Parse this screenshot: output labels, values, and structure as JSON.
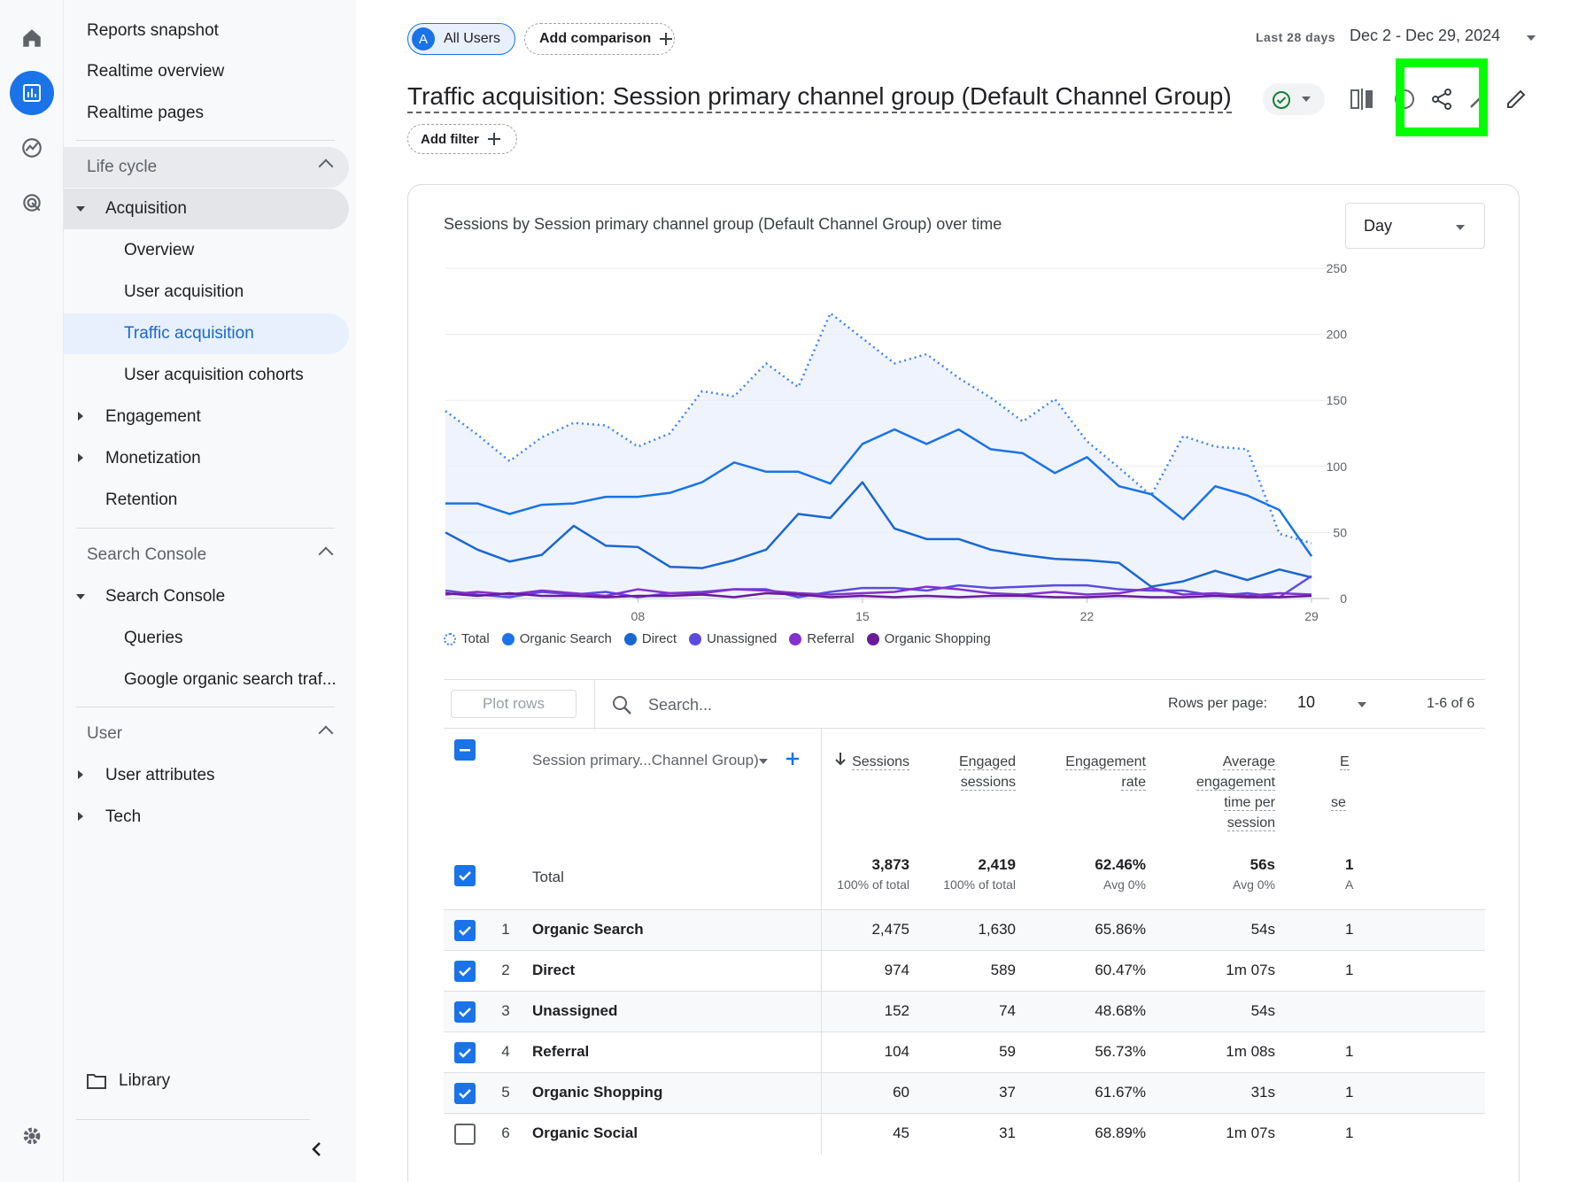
{
  "rail": {
    "icons": [
      "home-icon",
      "reports-icon",
      "explore-icon",
      "advertising-icon",
      "settings-icon"
    ]
  },
  "nav": {
    "reports_snapshot": "Reports snapshot",
    "realtime_overview": "Realtime overview",
    "realtime_pages": "Realtime pages",
    "life_cycle": "Life cycle",
    "acquisition": "Acquisition",
    "overview": "Overview",
    "user_acquisition": "User acquisition",
    "traffic_acquisition": "Traffic acquisition",
    "user_acquisition_cohorts": "User acquisition cohorts",
    "engagement": "Engagement",
    "monetization": "Monetization",
    "retention": "Retention",
    "search_console_section": "Search Console",
    "search_console": "Search Console",
    "queries": "Queries",
    "google_organic": "Google organic search traf...",
    "user_section": "User",
    "user_attributes": "User attributes",
    "tech": "Tech",
    "library": "Library"
  },
  "header": {
    "all_users_avatar": "A",
    "all_users": "All Users",
    "add_comparison": "Add comparison",
    "date_label": "Last 28 days",
    "date_range": "Dec 2 - Dec 29, 2024",
    "title": "Traffic acquisition: Session primary channel group (Default Channel Group)",
    "add_filter": "Add filter"
  },
  "card": {
    "chart_title": "Sessions by Session primary channel group (Default Channel Group) over time",
    "granularity": "Day"
  },
  "chart_data": {
    "type": "line",
    "x": [
      "Dec 2",
      "Dec 3",
      "Dec 4",
      "Dec 5",
      "Dec 6",
      "Dec 7",
      "Dec 8",
      "Dec 9",
      "Dec 10",
      "Dec 11",
      "Dec 12",
      "Dec 13",
      "Dec 14",
      "Dec 15",
      "Dec 16",
      "Dec 17",
      "Dec 18",
      "Dec 19",
      "Dec 20",
      "Dec 21",
      "Dec 22",
      "Dec 23",
      "Dec 24",
      "Dec 25",
      "Dec 26",
      "Dec 27",
      "Dec 28",
      "Dec 29"
    ],
    "x_ticks": [
      {
        "label": "08",
        "sub": "Dec",
        "index": 6
      },
      {
        "label": "15",
        "index": 13
      },
      {
        "label": "22",
        "index": 20
      },
      {
        "label": "29",
        "index": 27
      }
    ],
    "ylim": [
      0,
      250
    ],
    "y_ticks": [
      0,
      50,
      100,
      150,
      200,
      250
    ],
    "y_axis_side": "right",
    "series": [
      {
        "name": "Total",
        "color": "#4285f4",
        "style": "dotted",
        "fill": true,
        "values": [
          142,
          124,
          104,
          122,
          133,
          131,
          115,
          125,
          157,
          153,
          178,
          160,
          216,
          197,
          178,
          185,
          167,
          152,
          134,
          151,
          119,
          99,
          78,
          123,
          115,
          113,
          49,
          null
        ]
      },
      {
        "name": "Organic Search",
        "color": "#1a73e8",
        "style": "solid",
        "values": [
          72,
          72,
          64,
          71,
          72,
          77,
          77,
          80,
          88,
          103,
          96,
          96,
          87,
          117,
          128,
          117,
          128,
          113,
          110,
          95,
          107,
          85,
          79,
          60,
          85,
          78,
          67,
          32
        ]
      },
      {
        "name": "Direct",
        "color": "#1967d2",
        "style": "solid",
        "values": [
          50,
          37,
          28,
          33,
          55,
          40,
          39,
          24,
          23,
          29,
          37,
          64,
          61,
          88,
          53,
          45,
          45,
          37,
          33,
          30,
          29,
          27,
          9,
          13,
          21,
          14,
          22,
          16
        ]
      },
      {
        "name": "Unassigned",
        "color": "#5c4bdc",
        "style": "solid",
        "values": [
          6,
          3,
          1,
          5,
          3,
          5,
          1,
          4,
          5,
          7,
          7,
          1,
          5,
          8,
          8,
          6,
          10,
          8,
          9,
          10,
          10,
          7,
          6,
          6,
          2,
          4,
          1,
          17
        ]
      },
      {
        "name": "Referral",
        "color": "#8430ce",
        "style": "solid",
        "values": [
          3,
          5,
          3,
          6,
          4,
          2,
          7,
          4,
          4,
          7,
          6,
          4,
          3,
          4,
          5,
          9,
          7,
          4,
          3,
          5,
          3,
          4,
          8,
          3,
          4,
          2,
          4,
          3
        ]
      },
      {
        "name": "Organic Shopping",
        "color": "#6a1b9a",
        "style": "solid",
        "values": [
          4,
          2,
          4,
          2,
          2,
          1,
          2,
          2,
          3,
          1,
          4,
          3,
          1,
          2,
          1,
          2,
          1,
          2,
          2,
          1,
          1,
          2,
          1,
          1,
          2,
          1,
          1,
          2
        ]
      }
    ]
  },
  "table": {
    "plot_rows": "Plot rows",
    "search_placeholder": "Search...",
    "rows_per_page_label": "Rows per page:",
    "rows_per_page": "10",
    "range": "1-6 of 6",
    "dimension_header": "Session primary...Channel Group)",
    "columns": {
      "sessions": "Sessions",
      "engaged_1": "Engaged",
      "engaged_2": "sessions",
      "rate_1": "Engagement",
      "rate_2": "rate",
      "avg_1": "Average",
      "avg_2": "engagement",
      "avg_3": "time per",
      "avg_4": "session",
      "ev_1": "E",
      "ev_2": "se"
    },
    "total": {
      "label": "Total",
      "sessions": "3,873",
      "sessions_sub": "100% of total",
      "engaged": "2,419",
      "engaged_sub": "100% of total",
      "rate": "62.46%",
      "rate_sub": "Avg 0%",
      "time": "56s",
      "time_sub": "Avg 0%",
      "ev": "1",
      "ev_sub": "A"
    },
    "rows": [
      {
        "num": "1",
        "name": "Organic Search",
        "sessions": "2,475",
        "engaged": "1,630",
        "rate": "65.86%",
        "time": "54s",
        "ev": "1",
        "checked": true
      },
      {
        "num": "2",
        "name": "Direct",
        "sessions": "974",
        "engaged": "589",
        "rate": "60.47%",
        "time": "1m 07s",
        "ev": "1",
        "checked": true
      },
      {
        "num": "3",
        "name": "Unassigned",
        "sessions": "152",
        "engaged": "74",
        "rate": "48.68%",
        "time": "54s",
        "ev": "",
        "checked": true
      },
      {
        "num": "4",
        "name": "Referral",
        "sessions": "104",
        "engaged": "59",
        "rate": "56.73%",
        "time": "1m 08s",
        "ev": "1",
        "checked": true
      },
      {
        "num": "5",
        "name": "Organic Shopping",
        "sessions": "60",
        "engaged": "37",
        "rate": "61.67%",
        "time": "31s",
        "ev": "1",
        "checked": true
      },
      {
        "num": "6",
        "name": "Organic Social",
        "sessions": "45",
        "engaged": "31",
        "rate": "68.89%",
        "time": "1m 07s",
        "ev": "1",
        "checked": false
      }
    ]
  },
  "colors": {
    "accent": "#1a73e8",
    "highlight": "#00ff00"
  }
}
